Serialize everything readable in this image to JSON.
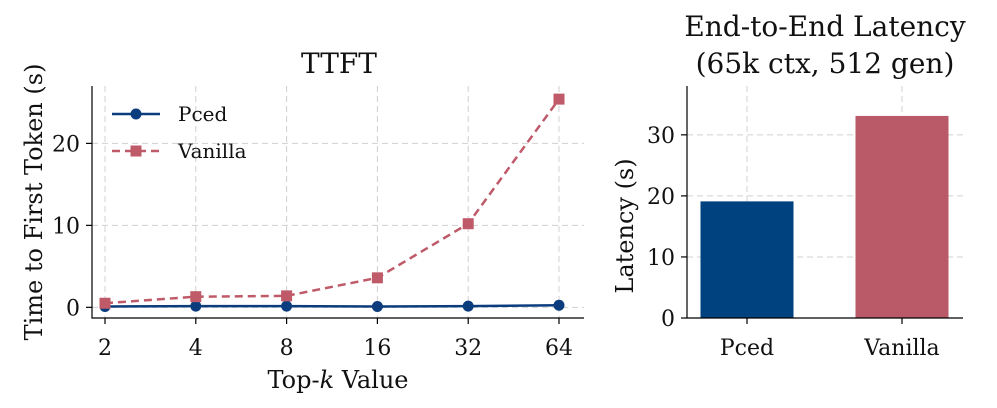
{
  "chart_data": [
    {
      "type": "line",
      "title": "TTFT",
      "xlabel_prefix": "Top-",
      "xlabel_var": "k",
      "xlabel_suffix": " Value",
      "ylabel": "Time to First Token (s)",
      "x": [
        2,
        4,
        8,
        16,
        32,
        64
      ],
      "x_scale": "log2",
      "xticks": [
        "2",
        "4",
        "8",
        "16",
        "32",
        "64"
      ],
      "yticks": [
        0,
        10,
        20
      ],
      "ylim": [
        -1.3,
        27
      ],
      "grid": true,
      "legend_position": "upper-left",
      "series": [
        {
          "name": "Pced",
          "color": "#0b3d7e",
          "marker": "circle",
          "linestyle": "solid",
          "values": [
            0.1,
            0.15,
            0.15,
            0.1,
            0.15,
            0.25
          ]
        },
        {
          "name": "Vanilla",
          "color": "#bf5a69",
          "marker": "square",
          "linestyle": "dashed",
          "values": [
            0.5,
            1.3,
            1.4,
            3.6,
            10.2,
            25.4
          ]
        }
      ]
    },
    {
      "type": "bar",
      "title_line1": "End-to-End Latency",
      "title_line2": "(65k ctx, 512 gen)",
      "ylabel": "Latency (s)",
      "categories": [
        "Pced",
        "Vanilla"
      ],
      "values": [
        19.1,
        33.1
      ],
      "colors": [
        "#00427f",
        "#ba5967"
      ],
      "yticks": [
        0,
        10,
        20,
        30
      ],
      "ylim": [
        0,
        38
      ],
      "grid": true
    }
  ]
}
